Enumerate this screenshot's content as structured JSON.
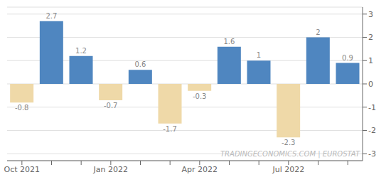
{
  "chart_data": {
    "type": "bar",
    "categories": [
      "Oct 2021",
      null,
      null,
      "Jan 2022",
      null,
      null,
      "Apr 2022",
      null,
      null,
      "Jul 2022",
      null,
      null
    ],
    "values": [
      -0.8,
      2.7,
      1.2,
      -0.7,
      0.6,
      -1.7,
      -0.3,
      1.6,
      1.0,
      -2.3,
      2.0,
      0.9
    ],
    "colors": [
      "#efd9a8",
      "#4f86c0",
      "#4f86c0",
      "#efd9a8",
      "#4f86c0",
      "#efd9a8",
      "#efd9a8",
      "#4f86c0",
      "#4f86c0",
      "#efd9a8",
      "#4f86c0",
      "#4f86c0"
    ],
    "ylim": [
      -3.3,
      3.3
    ],
    "yticks": [
      -3,
      -2,
      -1,
      0,
      1,
      2,
      3
    ],
    "grid": true,
    "data_labels": true,
    "annotation": "TRADINGECONOMICS.COM | EUROSTAT"
  }
}
